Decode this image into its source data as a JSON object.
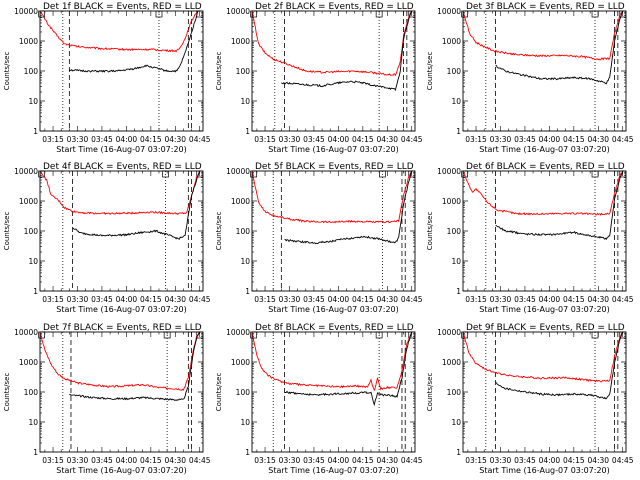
{
  "figure": {
    "y_tick_labels": [
      "1",
      "10",
      "100",
      "1000",
      "10000"
    ],
    "x_tick_labels": [
      "03:15",
      "03:30",
      "03:45",
      "04:00",
      "04:15",
      "04:30",
      "04:45"
    ],
    "ylabel": "Counts/sec",
    "xlabel": "Start Time (16-Aug-07 03:07:20)",
    "colors": {
      "events": "#000000",
      "lld": "#ff0000",
      "axes": "#000000"
    }
  },
  "chart_data": [
    {
      "type": "line",
      "title": "Det 1f BLACK = Events, RED = LLD",
      "yscale": "log",
      "ylim": [
        1,
        10000
      ],
      "xlim": [
        "03:07",
        "04:47"
      ],
      "xlabel": "Start Time (16-Aug-07 03:07:20)",
      "ylabel": "Counts/sec",
      "grid": false,
      "dotted_vlines": [
        "03:21",
        "04:20"
      ],
      "dashed_vlines": [
        "03:25",
        "04:38",
        "04:40"
      ],
      "series": [
        {
          "color": "#ff0000",
          "x": [
            "03:07",
            "03:12",
            "03:17",
            "03:22",
            "03:30",
            "03:45",
            "04:00",
            "04:15",
            "04:25",
            "04:31",
            "04:33",
            "04:36",
            "04:39",
            "04:42",
            "04:44"
          ],
          "y": [
            10000,
            3600,
            1600,
            800,
            650,
            560,
            520,
            520,
            480,
            470,
            600,
            1200,
            3500,
            7500,
            10000
          ]
        },
        {
          "color": "#000000",
          "x": [
            "03:25",
            "03:28",
            "03:35",
            "03:45",
            "03:55",
            "04:05",
            "04:12",
            "04:18",
            "04:25",
            "04:31",
            "04:33",
            "04:36",
            "04:39",
            "04:42",
            "04:44"
          ],
          "y": [
            110,
            105,
            100,
            98,
            100,
            120,
            150,
            125,
            100,
            100,
            150,
            400,
            1300,
            4500,
            10000
          ]
        }
      ]
    },
    {
      "type": "line",
      "title": "Det 2f BLACK = Events, RED = LLD",
      "yscale": "log",
      "ylim": [
        1,
        10000
      ],
      "xlim": [
        "03:07",
        "04:47"
      ],
      "xlabel": "Start Time (16-Aug-07 03:07:20)",
      "ylabel": "Counts/sec",
      "grid": false,
      "dotted_vlines": [
        "03:21",
        "04:25"
      ],
      "dashed_vlines": [
        "03:27",
        "04:40",
        "04:42"
      ],
      "series": [
        {
          "color": "#ff0000",
          "x": [
            "03:07",
            "03:11",
            "03:15",
            "03:20",
            "03:30",
            "03:40",
            "03:50",
            "04:00",
            "04:10",
            "04:20",
            "04:30",
            "04:35",
            "04:38",
            "04:40",
            "04:43",
            "04:45"
          ],
          "y": [
            10000,
            800,
            400,
            250,
            160,
            100,
            90,
            95,
            100,
            90,
            75,
            75,
            200,
            1500,
            6000,
            10000
          ]
        },
        {
          "color": "#000000",
          "x": [
            "03:25",
            "03:32",
            "03:40",
            "03:50",
            "04:00",
            "04:08",
            "04:15",
            "04:22",
            "04:30",
            "04:35",
            "04:38",
            "04:40",
            "04:43",
            "04:45"
          ],
          "y": [
            40,
            38,
            35,
            32,
            40,
            45,
            40,
            32,
            28,
            24,
            100,
            1200,
            5000,
            10000
          ]
        }
      ]
    },
    {
      "type": "line",
      "title": "Det 3f BLACK = Events, RED = LLD",
      "yscale": "log",
      "ylim": [
        1,
        10000
      ],
      "xlim": [
        "03:07",
        "04:47"
      ],
      "xlabel": "Start Time (16-Aug-07 03:07:20)",
      "ylabel": "Counts/sec",
      "grid": false,
      "dotted_vlines": [
        "03:21",
        "04:28"
      ],
      "dashed_vlines": [
        "03:27",
        "04:40",
        "04:42"
      ],
      "series": [
        {
          "color": "#ff0000",
          "x": [
            "03:07",
            "03:11",
            "03:15",
            "03:20",
            "03:27",
            "03:40",
            "03:55",
            "04:10",
            "04:20",
            "04:30",
            "04:37",
            "04:40",
            "04:43",
            "04:45"
          ],
          "y": [
            10000,
            1800,
            900,
            650,
            450,
            350,
            320,
            330,
            300,
            250,
            260,
            1800,
            6500,
            10000
          ]
        },
        {
          "color": "#000000",
          "x": [
            "03:27",
            "03:33",
            "03:45",
            "03:55",
            "04:05",
            "04:15",
            "04:25",
            "04:35",
            "04:37",
            "04:40",
            "04:43",
            "04:45"
          ],
          "y": [
            150,
            100,
            70,
            55,
            55,
            60,
            55,
            40,
            60,
            1000,
            5000,
            10000
          ]
        }
      ]
    },
    {
      "type": "line",
      "title": "Det 4f BLACK = Events, RED = LLD",
      "yscale": "log",
      "ylim": [
        1,
        10000
      ],
      "xlim": [
        "03:07",
        "04:47"
      ],
      "xlabel": "Start Time (16-Aug-07 03:07:20)",
      "ylabel": "Counts/sec",
      "grid": false,
      "dotted_vlines": [
        "03:21",
        "04:24"
      ],
      "dashed_vlines": [
        "03:27",
        "04:38",
        "04:40"
      ],
      "series": [
        {
          "color": "#ff0000",
          "x": [
            "03:07",
            "03:11",
            "03:14",
            "03:18",
            "03:22",
            "03:27",
            "03:35",
            "03:50",
            "04:05",
            "04:15",
            "04:25",
            "04:32",
            "04:37",
            "04:40",
            "04:43",
            "04:45"
          ],
          "y": [
            10000,
            5000,
            1500,
            1100,
            600,
            450,
            400,
            380,
            400,
            430,
            400,
            380,
            400,
            1500,
            6000,
            10000
          ]
        },
        {
          "color": "#000000",
          "x": [
            "03:27",
            "03:32",
            "03:45",
            "04:00",
            "04:10",
            "04:18",
            "04:25",
            "04:32",
            "04:36",
            "04:40",
            "04:43",
            "04:45"
          ],
          "y": [
            130,
            85,
            70,
            75,
            90,
            100,
            75,
            55,
            70,
            1500,
            5000,
            10000
          ]
        }
      ]
    },
    {
      "type": "line",
      "title": "Det 5f BLACK = Events, RED = LLD",
      "yscale": "log",
      "ylim": [
        1,
        10000
      ],
      "xlim": [
        "03:07",
        "04:47"
      ],
      "xlabel": "Start Time (16-Aug-07 03:07:20)",
      "ylabel": "Counts/sec",
      "grid": false,
      "dotted_vlines": [
        "03:20",
        "04:27"
      ],
      "dashed_vlines": [
        "03:25",
        "04:39",
        "04:41"
      ],
      "series": [
        {
          "color": "#ff0000",
          "x": [
            "03:07",
            "03:11",
            "03:15",
            "03:20",
            "03:30",
            "03:40",
            "03:55",
            "04:10",
            "04:20",
            "04:30",
            "04:37",
            "04:40",
            "04:43",
            "04:45"
          ],
          "y": [
            10000,
            900,
            450,
            330,
            250,
            210,
            200,
            210,
            200,
            200,
            220,
            1500,
            6000,
            10000
          ]
        },
        {
          "color": "#000000",
          "x": [
            "03:27",
            "03:35",
            "03:45",
            "03:55",
            "04:05",
            "04:15",
            "04:25",
            "04:35",
            "04:37",
            "04:40",
            "04:43",
            "04:45"
          ],
          "y": [
            50,
            45,
            40,
            45,
            55,
            65,
            55,
            40,
            60,
            800,
            4000,
            10000
          ]
        }
      ]
    },
    {
      "type": "line",
      "title": "Det 6f BLACK = Events, RED = LLD",
      "yscale": "log",
      "ylim": [
        1,
        10000
      ],
      "xlim": [
        "03:07",
        "04:47"
      ],
      "xlabel": "Start Time (16-Aug-07 03:07:20)",
      "ylabel": "Counts/sec",
      "grid": false,
      "dotted_vlines": [
        "03:21",
        "04:28"
      ],
      "dashed_vlines": [
        "03:27",
        "04:40",
        "04:42"
      ],
      "series": [
        {
          "color": "#ff0000",
          "x": [
            "03:07",
            "03:11",
            "03:13",
            "03:15",
            "03:18",
            "03:22",
            "03:28",
            "03:40",
            "03:55",
            "04:10",
            "04:20",
            "04:30",
            "04:37",
            "04:40",
            "04:43",
            "04:45"
          ],
          "y": [
            10000,
            3000,
            2000,
            2500,
            1700,
            900,
            500,
            380,
            370,
            390,
            380,
            360,
            380,
            1800,
            6500,
            10000
          ]
        },
        {
          "color": "#000000",
          "x": [
            "03:27",
            "03:33",
            "03:45",
            "04:00",
            "04:15",
            "04:25",
            "04:35",
            "04:37",
            "04:40",
            "04:43",
            "04:45"
          ],
          "y": [
            160,
            100,
            80,
            75,
            90,
            70,
            55,
            70,
            1200,
            5000,
            10000
          ]
        }
      ]
    },
    {
      "type": "line",
      "title": "Det 7f BLACK = Events, RED = LLD",
      "yscale": "log",
      "ylim": [
        1,
        10000
      ],
      "xlim": [
        "03:07",
        "04:47"
      ],
      "xlabel": "Start Time (16-Aug-07 03:07:20)",
      "ylabel": "Counts/sec",
      "grid": false,
      "dotted_vlines": [
        "03:21",
        "04:25"
      ],
      "dashed_vlines": [
        "03:26",
        "04:38",
        "04:40"
      ],
      "series": [
        {
          "color": "#ff0000",
          "x": [
            "03:07",
            "03:10",
            "03:14",
            "03:18",
            "03:22",
            "03:30",
            "03:40",
            "03:50",
            "04:00",
            "04:10",
            "04:20",
            "04:30",
            "04:35",
            "04:38",
            "04:41",
            "04:43",
            "04:45"
          ],
          "y": [
            10000,
            2500,
            800,
            400,
            280,
            200,
            170,
            150,
            160,
            175,
            140,
            130,
            120,
            300,
            2500,
            7000,
            10000
          ]
        },
        {
          "color": "#000000",
          "x": [
            "03:25",
            "03:30",
            "03:40",
            "03:50",
            "04:00",
            "04:10",
            "04:20",
            "04:30",
            "04:35",
            "04:38",
            "04:41",
            "04:43",
            "04:45"
          ],
          "y": [
            80,
            75,
            65,
            60,
            60,
            65,
            60,
            55,
            55,
            150,
            2000,
            6000,
            10000
          ]
        }
      ]
    },
    {
      "type": "line",
      "title": "Det 8f BLACK = Events, RED = LLD",
      "yscale": "log",
      "ylim": [
        1,
        10000
      ],
      "xlim": [
        "03:07",
        "04:47"
      ],
      "xlabel": "Start Time (16-Aug-07 03:07:20)",
      "ylabel": "Counts/sec",
      "grid": false,
      "dotted_vlines": [
        "03:20",
        "04:25"
      ],
      "dashed_vlines": [
        "03:27",
        "04:39",
        "04:41"
      ],
      "series": [
        {
          "color": "#ff0000",
          "x": [
            "03:07",
            "03:10",
            "03:13",
            "03:17",
            "03:22",
            "03:30",
            "03:40",
            "03:50",
            "04:00",
            "04:10",
            "04:18",
            "04:20",
            "04:22",
            "04:24",
            "04:26",
            "04:30",
            "04:36",
            "04:39",
            "04:42",
            "04:45"
          ],
          "y": [
            10000,
            1700,
            600,
            350,
            250,
            190,
            170,
            160,
            150,
            160,
            150,
            250,
            110,
            300,
            130,
            140,
            140,
            500,
            4000,
            10000
          ]
        },
        {
          "color": "#000000",
          "x": [
            "03:27",
            "03:35",
            "03:45",
            "03:55",
            "04:05",
            "04:15",
            "04:20",
            "04:22",
            "04:24",
            "04:26",
            "04:30",
            "04:36",
            "04:39",
            "04:42",
            "04:45"
          ],
          "y": [
            100,
            90,
            80,
            85,
            90,
            95,
            95,
            40,
            90,
            80,
            80,
            70,
            300,
            3000,
            10000
          ]
        }
      ]
    },
    {
      "type": "line",
      "title": "Det 9f BLACK = Events, RED = LLD",
      "yscale": "log",
      "ylim": [
        1,
        10000
      ],
      "xlim": [
        "03:07",
        "04:47"
      ],
      "xlabel": "Start Time (16-Aug-07 03:07:20)",
      "ylabel": "Counts/sec",
      "grid": false,
      "dotted_vlines": [
        "03:21",
        "04:28"
      ],
      "dashed_vlines": [
        "03:27",
        "04:40",
        "04:42"
      ],
      "series": [
        {
          "color": "#ff0000",
          "x": [
            "03:07",
            "03:11",
            "03:15",
            "03:20",
            "03:28",
            "03:40",
            "03:55",
            "04:10",
            "04:20",
            "04:30",
            "04:37",
            "04:40",
            "04:43",
            "04:45"
          ],
          "y": [
            10000,
            1800,
            900,
            600,
            420,
            330,
            290,
            300,
            260,
            230,
            240,
            1600,
            6000,
            10000
          ]
        },
        {
          "color": "#000000",
          "x": [
            "03:27",
            "03:33",
            "03:45",
            "03:55",
            "04:05",
            "04:15",
            "04:25",
            "04:35",
            "04:37",
            "04:40",
            "04:43",
            "04:45"
          ],
          "y": [
            200,
            130,
            100,
            85,
            80,
            85,
            80,
            60,
            80,
            1000,
            5000,
            10000
          ]
        }
      ]
    }
  ]
}
